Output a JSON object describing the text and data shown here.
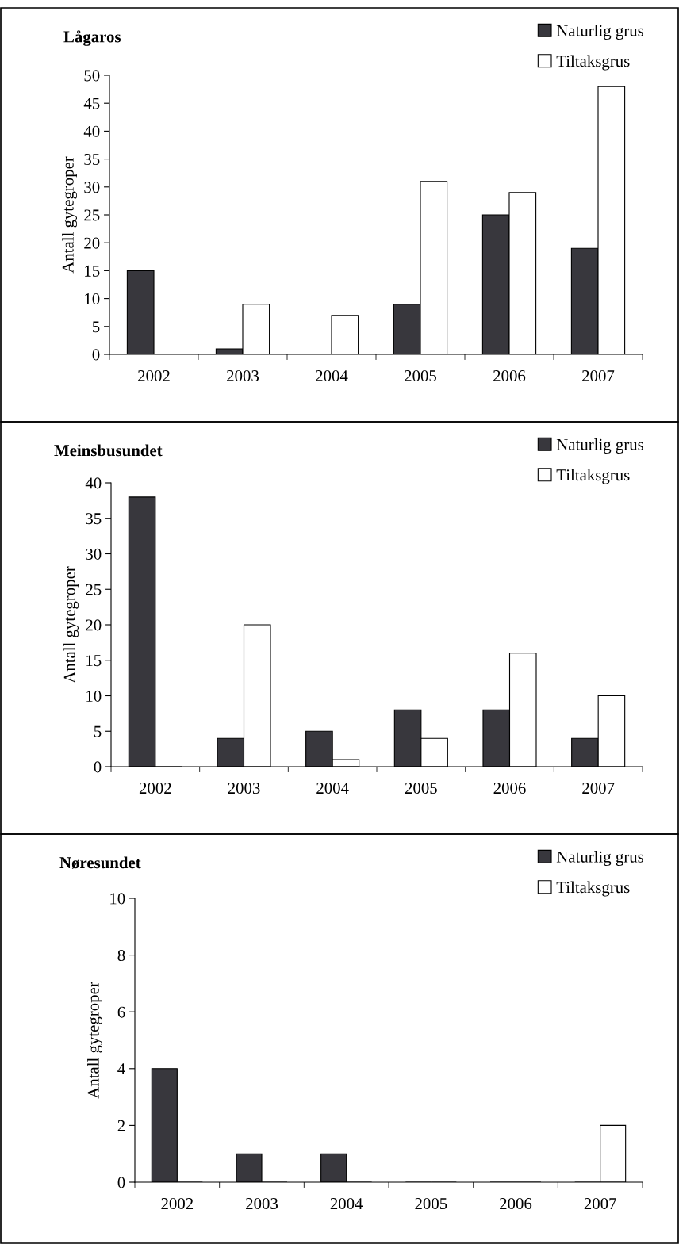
{
  "chart_data": [
    {
      "type": "bar",
      "title": "Lågaros",
      "ylabel": "Antall gytegroper",
      "categories": [
        "2002",
        "2003",
        "2004",
        "2005",
        "2006",
        "2007"
      ],
      "ylim": [
        0,
        50
      ],
      "yticks": [
        0,
        5,
        10,
        15,
        20,
        25,
        30,
        35,
        40,
        45,
        50
      ],
      "legend": "top right",
      "grid": false,
      "series": [
        {
          "name": "Naturlig grus",
          "color": "#38373d",
          "values": [
            15,
            1,
            0,
            9,
            25,
            19
          ]
        },
        {
          "name": "Tiltaksgrus",
          "color": "#ffffff",
          "values": [
            0,
            9,
            7,
            31,
            29,
            48
          ]
        }
      ]
    },
    {
      "type": "bar",
      "title": "Meinsbusundet",
      "ylabel": "Antall gytegroper",
      "categories": [
        "2002",
        "2003",
        "2004",
        "2005",
        "2006",
        "2007"
      ],
      "ylim": [
        0,
        40
      ],
      "yticks": [
        0,
        5,
        10,
        15,
        20,
        25,
        30,
        35,
        40
      ],
      "legend": "top right",
      "grid": false,
      "series": [
        {
          "name": "Naturlig grus",
          "color": "#38373d",
          "values": [
            38,
            4,
            5,
            8,
            8,
            4
          ]
        },
        {
          "name": "Tiltaksgrus",
          "color": "#ffffff",
          "values": [
            0,
            20,
            1,
            4,
            16,
            10
          ]
        }
      ]
    },
    {
      "type": "bar",
      "title": "Nøresundet",
      "ylabel": "Antall gytegroper",
      "categories": [
        "2002",
        "2003",
        "2004",
        "2005",
        "2006",
        "2007"
      ],
      "ylim": [
        0,
        10
      ],
      "yticks": [
        0,
        2,
        4,
        6,
        8,
        10
      ],
      "legend": "top right",
      "grid": false,
      "series": [
        {
          "name": "Naturlig grus",
          "color": "#38373d",
          "values": [
            4,
            1,
            1,
            0,
            0,
            0
          ]
        },
        {
          "name": "Tiltaksgrus",
          "color": "#ffffff",
          "values": [
            0,
            0,
            0,
            0,
            0,
            2
          ]
        }
      ]
    }
  ]
}
